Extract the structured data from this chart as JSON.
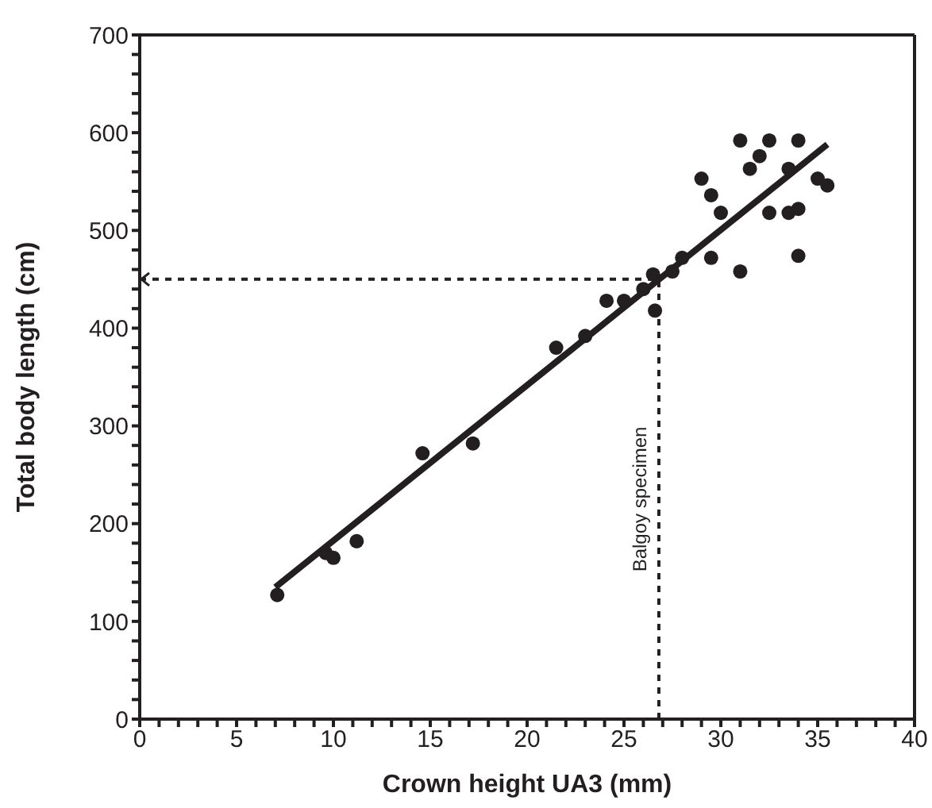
{
  "chart_data": {
    "type": "scatter",
    "xlabel": "Crown height UA3 (mm)",
    "ylabel": "Total body length (cm)",
    "xlim": [
      0,
      40
    ],
    "ylim": [
      0,
      700
    ],
    "xticks": [
      0,
      {
        "value": 1,
        "label": null
      },
      {
        "value": 2,
        "label": null
      },
      {
        "value": 3,
        "label": null
      },
      {
        "value": 4,
        "label": null
      },
      5,
      {
        "value": 6,
        "label": null
      },
      {
        "value": 7,
        "label": null
      },
      {
        "value": 8,
        "label": null
      },
      {
        "value": 9,
        "label": null
      },
      10,
      {
        "value": 11,
        "label": null
      },
      {
        "value": 12,
        "label": null
      },
      {
        "value": 13,
        "label": null
      },
      {
        "value": 14,
        "label": null
      },
      15,
      {
        "value": 16,
        "label": null
      },
      {
        "value": 17,
        "label": null
      },
      {
        "value": 18,
        "label": null
      },
      {
        "value": 19,
        "label": null
      },
      20,
      {
        "value": 21,
        "label": null
      },
      {
        "value": 22,
        "label": null
      },
      {
        "value": 23,
        "label": null
      },
      {
        "value": 24,
        "label": null
      },
      25,
      {
        "value": 26,
        "label": null
      },
      {
        "value": 27,
        "label": null
      },
      {
        "value": 28,
        "label": null
      },
      {
        "value": 29,
        "label": null
      },
      30,
      {
        "value": 31,
        "label": null
      },
      {
        "value": 32,
        "label": null
      },
      {
        "value": 33,
        "label": null
      },
      {
        "value": 34,
        "label": null
      },
      35,
      {
        "value": 36,
        "label": null
      },
      {
        "value": 37,
        "label": null
      },
      {
        "value": 38,
        "label": null
      },
      {
        "value": 39,
        "label": null
      },
      40
    ],
    "yticks": [
      0,
      {
        "value": 20,
        "label": null
      },
      {
        "value": 40,
        "label": null
      },
      {
        "value": 60,
        "label": null
      },
      {
        "value": 80,
        "label": null
      },
      100,
      {
        "value": 120,
        "label": null
      },
      {
        "value": 140,
        "label": null
      },
      {
        "value": 160,
        "label": null
      },
      {
        "value": 180,
        "label": null
      },
      200,
      {
        "value": 220,
        "label": null
      },
      {
        "value": 240,
        "label": null
      },
      {
        "value": 260,
        "label": null
      },
      {
        "value": 280,
        "label": null
      },
      300,
      {
        "value": 320,
        "label": null
      },
      {
        "value": 340,
        "label": null
      },
      {
        "value": 360,
        "label": null
      },
      {
        "value": 380,
        "label": null
      },
      400,
      {
        "value": 420,
        "label": null
      },
      {
        "value": 440,
        "label": null
      },
      {
        "value": 460,
        "label": null
      },
      {
        "value": 480,
        "label": null
      },
      500,
      {
        "value": 520,
        "label": null
      },
      {
        "value": 540,
        "label": null
      },
      {
        "value": 560,
        "label": null
      },
      {
        "value": 580,
        "label": null
      },
      600,
      {
        "value": 620,
        "label": null
      },
      {
        "value": 640,
        "label": null
      },
      {
        "value": 660,
        "label": null
      },
      {
        "value": 680,
        "label": null
      },
      700
    ],
    "grid": false,
    "marker": "circle",
    "series": [
      {
        "color": "#231f20",
        "x": [
          7.1,
          9.6,
          10,
          11.2,
          14.6,
          17.2,
          21.5,
          23,
          24.1,
          25,
          26,
          26.5,
          26.6,
          27.5,
          28,
          29,
          29.5,
          30,
          29.5,
          31,
          31,
          31.5,
          32,
          32.5,
          32.5,
          33.5,
          33.5,
          34,
          34,
          34,
          35,
          35.5
        ],
        "values": [
          127,
          170,
          165,
          182,
          272,
          282,
          380,
          392,
          428,
          428,
          440,
          455,
          418,
          458,
          472,
          553,
          536,
          518,
          472,
          592,
          458,
          563,
          576,
          592,
          518,
          518,
          563,
          592,
          522,
          474,
          553,
          546
        ]
      },
      {
        "type": "line",
        "color": "#231f20",
        "marker": "none",
        "x": [
          7,
          35.5
        ],
        "values": [
          135,
          588
        ]
      }
    ],
    "ref_lines": [
      {
        "axis": "x",
        "value": 26.8,
        "label": "Balgoy specimen",
        "line_style": "dashed"
      },
      {
        "axis": "y",
        "value": 450,
        "label": null,
        "line_style": "dashed"
      }
    ]
  }
}
